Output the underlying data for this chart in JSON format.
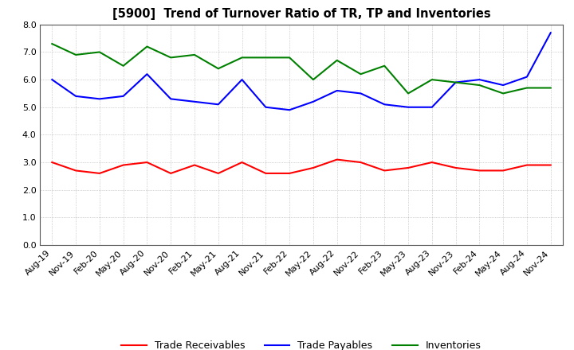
{
  "title": "[5900]  Trend of Turnover Ratio of TR, TP and Inventories",
  "x_labels": [
    "Aug-19",
    "Nov-19",
    "Feb-20",
    "May-20",
    "Aug-20",
    "Nov-20",
    "Feb-21",
    "May-21",
    "Aug-21",
    "Nov-21",
    "Feb-22",
    "May-22",
    "Aug-22",
    "Nov-22",
    "Feb-23",
    "May-23",
    "Aug-23",
    "Nov-23",
    "Feb-24",
    "May-24",
    "Aug-24",
    "Nov-24"
  ],
  "trade_receivables": [
    3.0,
    2.7,
    2.6,
    2.9,
    3.0,
    2.6,
    2.9,
    2.6,
    3.0,
    2.6,
    2.6,
    2.8,
    3.1,
    3.0,
    2.7,
    2.8,
    3.0,
    2.8,
    2.7,
    2.7,
    2.9,
    2.9
  ],
  "trade_payables": [
    6.0,
    5.4,
    5.3,
    5.4,
    6.2,
    5.3,
    5.2,
    5.1,
    6.0,
    5.0,
    4.9,
    5.2,
    5.6,
    5.5,
    5.1,
    5.0,
    5.0,
    5.9,
    6.0,
    5.8,
    6.1,
    7.7
  ],
  "inventories": [
    7.3,
    6.9,
    7.0,
    6.5,
    7.2,
    6.8,
    6.9,
    6.4,
    6.8,
    6.8,
    6.8,
    6.0,
    6.7,
    6.2,
    6.5,
    5.5,
    6.0,
    5.9,
    5.8,
    5.5,
    5.7,
    5.7
  ],
  "ylim": [
    0.0,
    8.0
  ],
  "yticks": [
    0.0,
    1.0,
    2.0,
    3.0,
    4.0,
    5.0,
    6.0,
    7.0,
    8.0
  ],
  "ytick_labels": [
    "0.0",
    "1.0",
    "2.0",
    "3.0",
    "4.0",
    "5.0",
    "6.0",
    "7.0",
    "8.0"
  ],
  "colors": {
    "trade_receivables": "#ff0000",
    "trade_payables": "#0000ff",
    "inventories": "#008000"
  },
  "legend_labels": [
    "Trade Receivables",
    "Trade Payables",
    "Inventories"
  ],
  "background_color": "#ffffff",
  "grid_color": "#888888",
  "title_fontsize": 10.5,
  "tick_fontsize": 8,
  "legend_fontsize": 9,
  "linewidth": 1.5
}
